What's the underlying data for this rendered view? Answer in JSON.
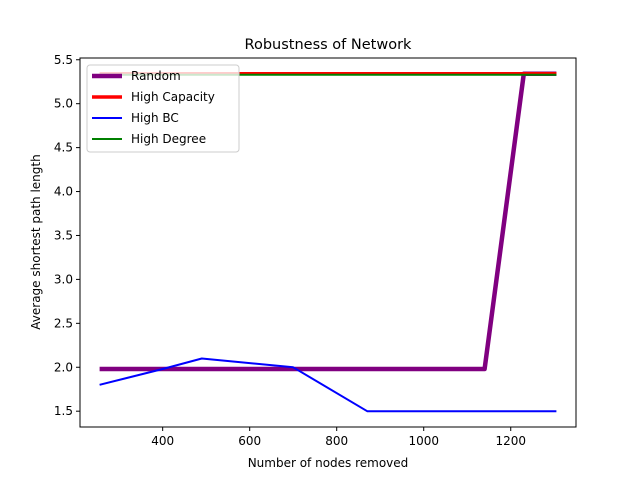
{
  "chart_data": {
    "type": "line",
    "title": "Robustness of Network",
    "xlabel": "Number of nodes removed",
    "ylabel": "Average shortest path length",
    "xlim": [
      210,
      1350
    ],
    "ylim": [
      1.32,
      5.52
    ],
    "xticks": [
      400,
      600,
      800,
      1000,
      1200
    ],
    "yticks": [
      1.5,
      2.0,
      2.5,
      3.0,
      3.5,
      4.0,
      4.5,
      5.0,
      5.5
    ],
    "xtick_labels": [
      "400",
      "600",
      "800",
      "1000",
      "1200"
    ],
    "ytick_labels": [
      "1.5",
      "2.0",
      "2.5",
      "3.0",
      "3.5",
      "4.0",
      "4.5",
      "5.0",
      "5.5"
    ],
    "grid": false,
    "legend_position": "top-left",
    "series": [
      {
        "name": "Random",
        "color": "#800080",
        "line_width": "thick",
        "x": [
          255,
          1140,
          1230,
          1305
        ],
        "y": [
          1.98,
          1.98,
          5.34,
          5.34
        ]
      },
      {
        "name": "High Capacity",
        "color": "#ff0000",
        "line_width": "medium",
        "x": [
          255,
          1305
        ],
        "y": [
          5.34,
          5.34
        ]
      },
      {
        "name": "High BC",
        "color": "#0000ff",
        "line_width": "thin",
        "x": [
          255,
          400,
          490,
          700,
          870,
          1305
        ],
        "y": [
          1.8,
          1.98,
          2.1,
          2.0,
          1.5,
          1.5
        ]
      },
      {
        "name": "High Degree",
        "color": "#008000",
        "line_width": "thin",
        "x": [
          255,
          1305
        ],
        "y": [
          5.33,
          5.33
        ]
      }
    ]
  }
}
